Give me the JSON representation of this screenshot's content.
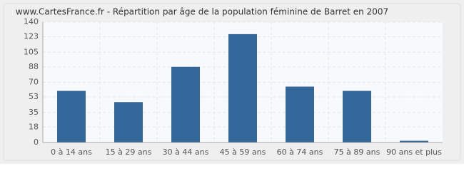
{
  "chart_data": {
    "type": "bar",
    "title": "www.CartesFrance.fr - Répartition par âge de la population féminine de Barret en 2007",
    "categories": [
      "0 à 14 ans",
      "15 à 29 ans",
      "30 à 44 ans",
      "45 à 59 ans",
      "60 à 74 ans",
      "75 à 89 ans",
      "90 ans et plus"
    ],
    "values": [
      60,
      47,
      88,
      126,
      65,
      60,
      2
    ],
    "color": "#336699",
    "ylim": [
      0,
      140
    ],
    "yticks": [
      0,
      18,
      35,
      53,
      70,
      88,
      105,
      123,
      140
    ],
    "grid": true
  }
}
